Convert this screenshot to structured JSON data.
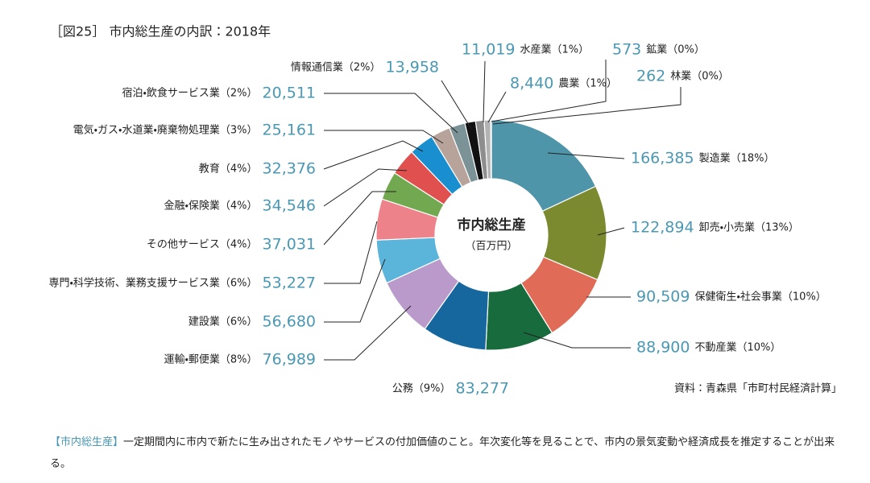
{
  "chart_data": {
    "type": "donut",
    "title": "［図25］ 市内総生産の内訳：2018年",
    "center_label": "市内総生産",
    "unit_label": "（百万円）",
    "source": "資料：青森県「市町村民経済計算」",
    "categories": [
      "製造業（18%）",
      "卸売・小売業（13%）",
      "保健衛生・社会事業（10%）",
      "不動産業（10%）",
      "公務（9%）",
      "運輸・郵便業（8%）",
      "建設業（6%）",
      "専門・科学技術、業務支援サービス業（6%）",
      "その他サービス（4%）",
      "金融・保険業（4%）",
      "教育（4%）",
      "電気・ガス・水道業・廃棄物処理業（3%）",
      "宿泊・飲食サービス業（2%）",
      "情報通信業（2%）",
      "水産業（1%）",
      "農業（1%）",
      "鉱業（0%）",
      "林業（0%）"
    ],
    "values": [
      166385,
      122894,
      90509,
      88900,
      83277,
      76989,
      56680,
      53227,
      37031,
      34546,
      32376,
      25161,
      20511,
      13958,
      11019,
      8440,
      573,
      262
    ],
    "value_labels": [
      "166,385",
      "122,894",
      "90,509",
      "88,900",
      "83,277",
      "76,989",
      "56,680",
      "53,227",
      "37,031",
      "34,546",
      "32,376",
      "25,161",
      "20,511",
      "13,958",
      "11,019",
      "8,440",
      "573",
      "262"
    ],
    "colors": [
      "#4f95aa",
      "#7b8a2e",
      "#e06b57",
      "#176b3c",
      "#17679f",
      "#b99acb",
      "#5bb4da",
      "#ee828a",
      "#72a84f",
      "#e0504f",
      "#1a8fd0",
      "#b8a39b",
      "#7b9397",
      "#111111",
      "#8e8e8e",
      "#b3b3b3",
      "#9c9c9c",
      "#cccccc"
    ]
  },
  "footnote": {
    "term": "【市内総生産】",
    "text": "一定期間内に市内で新たに生み出されたモノやサービスの付加価値のこと。年次変化等を見ることで、市内の景気変動や経済成長を推定することが出来る。"
  }
}
